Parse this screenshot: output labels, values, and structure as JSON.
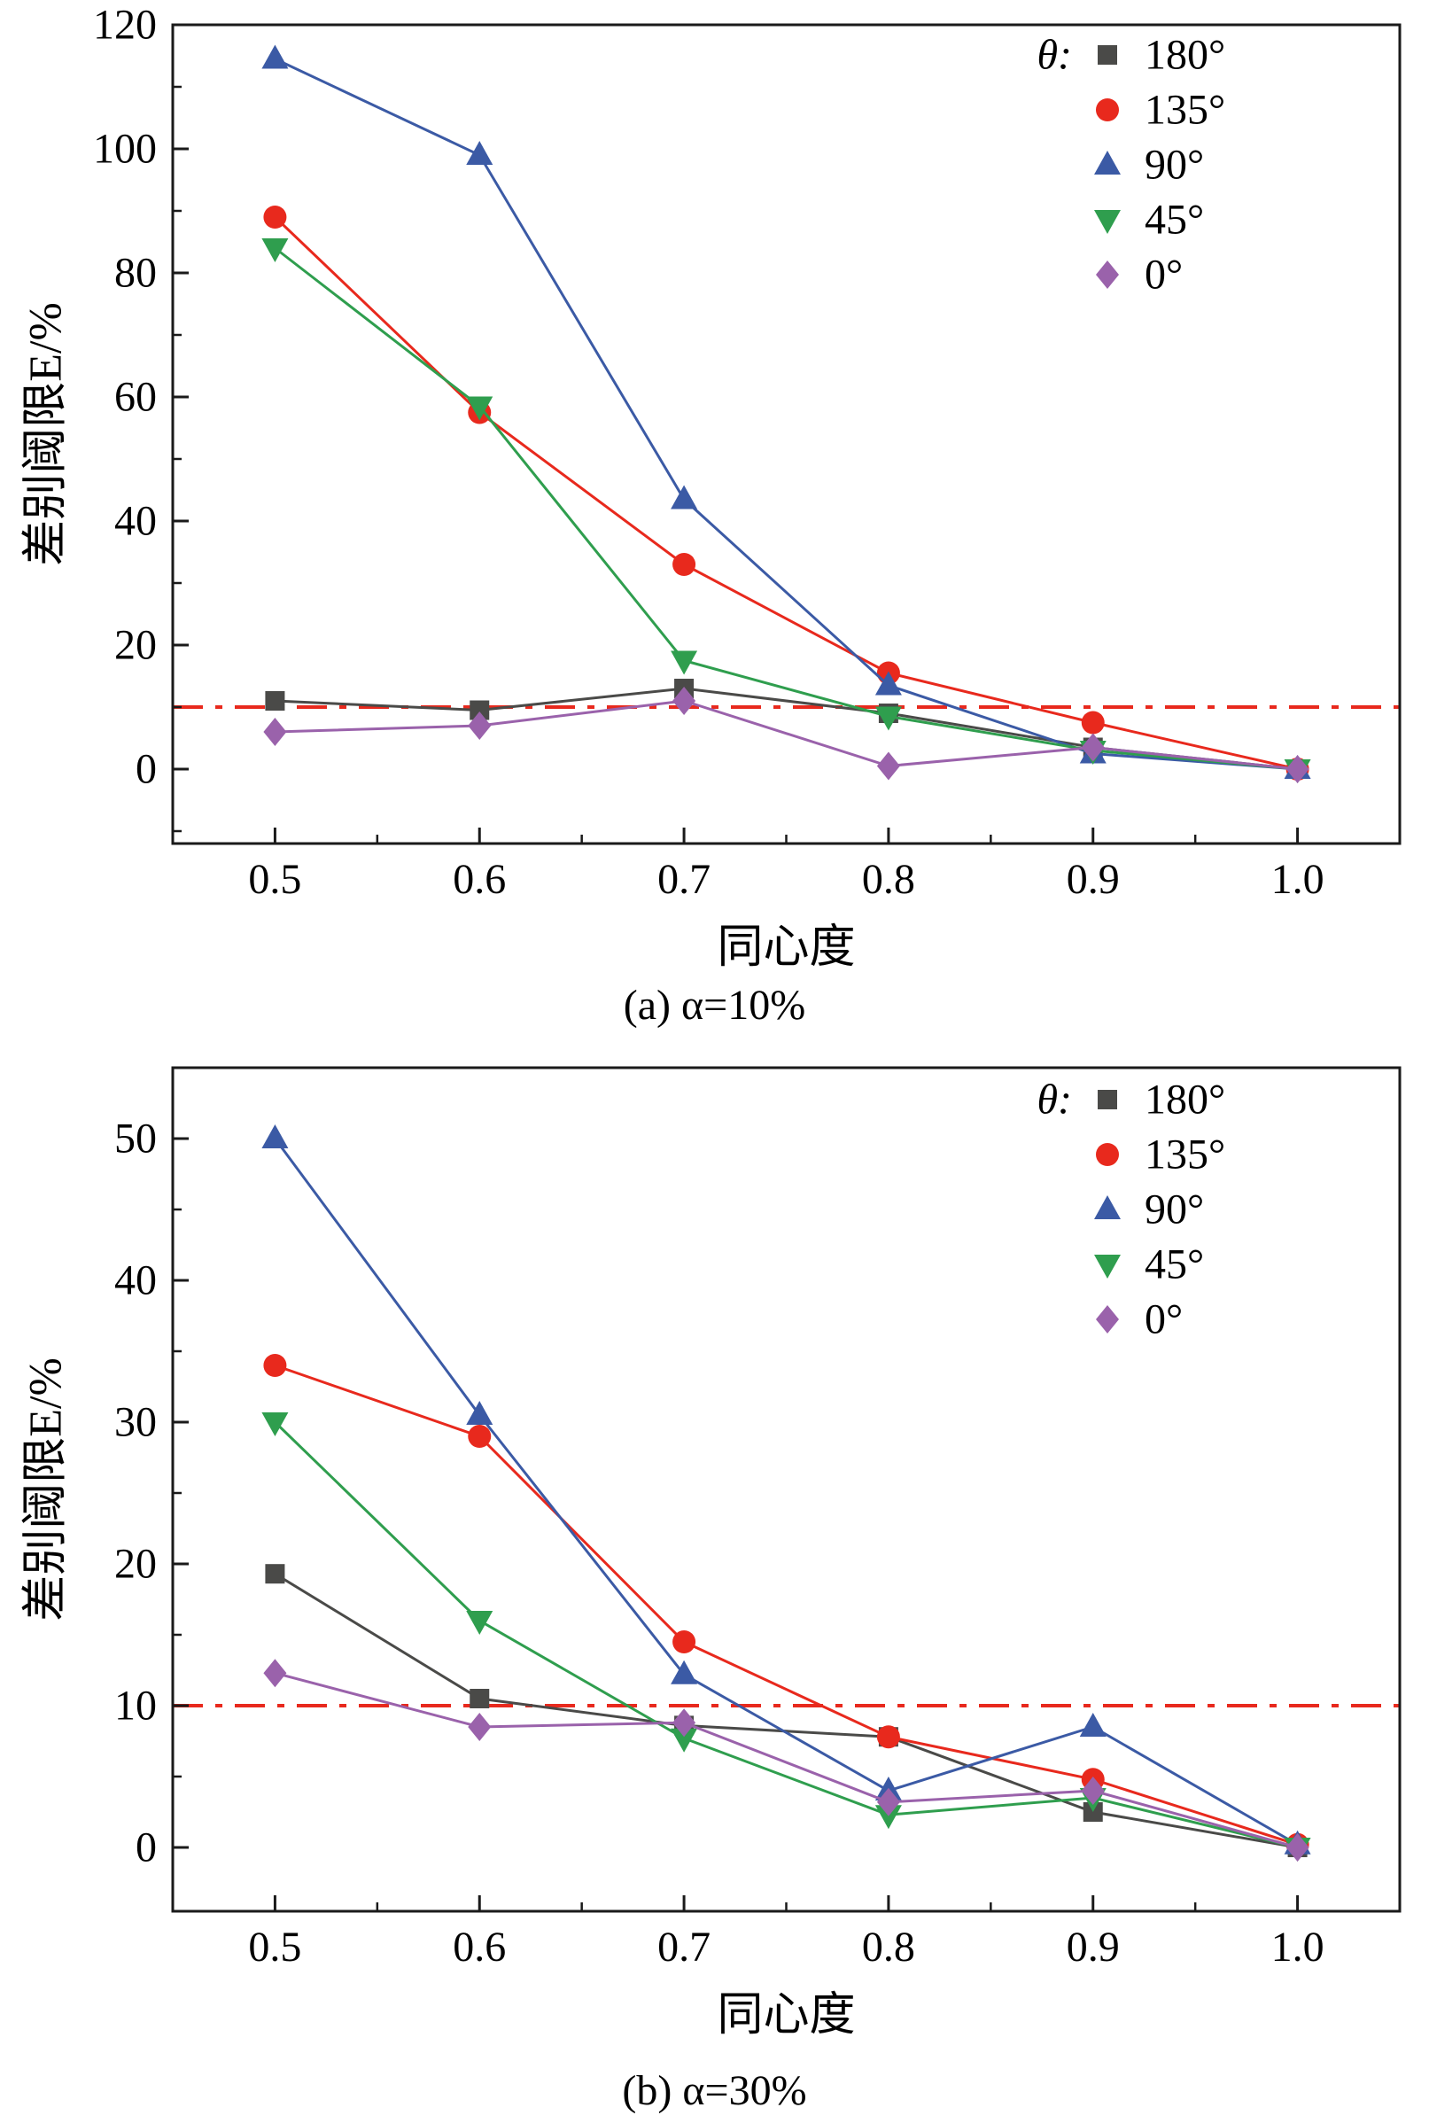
{
  "colors": {
    "axis": "#1a1a1a",
    "background": "#ffffff",
    "reference": "#e8291d"
  },
  "chart_data": [
    {
      "type": "line",
      "caption": "(a) α=10%",
      "xlabel": "同心度",
      "ylabel": "差别阈限E/%",
      "legend_title": "θ:",
      "legend_position": "top-right",
      "x": [
        0.5,
        0.6,
        0.7,
        0.8,
        0.9,
        1.0
      ],
      "xlim": [
        0.45,
        1.05
      ],
      "ylim": [
        -12,
        120
      ],
      "xticks": [
        "0.5",
        "0.6",
        "0.7",
        "0.8",
        "0.9",
        "1.0"
      ],
      "yticks": [
        "0",
        "20",
        "40",
        "60",
        "80",
        "100",
        "120"
      ],
      "x_minor_step": 0.05,
      "y_minor_step": 10,
      "reference_line_y": 10,
      "grid": false,
      "series": [
        {
          "name": "180°",
          "marker": "square",
          "color": "#4a4a48",
          "values": [
            11,
            9.5,
            13,
            9,
            3.5,
            0
          ]
        },
        {
          "name": "135°",
          "marker": "circle",
          "color": "#e8291d",
          "values": [
            89,
            57.5,
            33,
            15.5,
            7.5,
            0
          ]
        },
        {
          "name": "90°",
          "marker": "triangle-up",
          "color": "#3b5aa5",
          "values": [
            114.5,
            99,
            43.5,
            13.5,
            2.5,
            0
          ]
        },
        {
          "name": "45°",
          "marker": "triangle-down",
          "color": "#2f9e4e",
          "values": [
            84,
            58.5,
            17.5,
            8.5,
            3,
            0
          ]
        },
        {
          "name": "0°",
          "marker": "diamond",
          "color": "#9a62ab",
          "values": [
            6,
            7,
            11,
            0.5,
            3.5,
            0
          ]
        }
      ]
    },
    {
      "type": "line",
      "caption": "(b) α=30%",
      "xlabel": "同心度",
      "ylabel": "差别阈限E/%",
      "legend_title": "θ:",
      "legend_position": "top-right",
      "x": [
        0.5,
        0.6,
        0.7,
        0.8,
        0.9,
        1.0
      ],
      "xlim": [
        0.45,
        1.05
      ],
      "ylim": [
        -4.5,
        55
      ],
      "xticks": [
        "0.5",
        "0.6",
        "0.7",
        "0.8",
        "0.9",
        "1.0"
      ],
      "yticks": [
        "0",
        "10",
        "20",
        "30",
        "40",
        "50"
      ],
      "x_minor_step": 0.05,
      "y_minor_step": 5,
      "reference_line_y": 10,
      "grid": false,
      "series": [
        {
          "name": "180°",
          "marker": "square",
          "color": "#4a4a48",
          "values": [
            19.3,
            10.5,
            8.6,
            7.8,
            2.5,
            0
          ]
        },
        {
          "name": "135°",
          "marker": "circle",
          "color": "#e8291d",
          "values": [
            34,
            29,
            14.5,
            7.8,
            4.8,
            0.2
          ]
        },
        {
          "name": "90°",
          "marker": "triangle-up",
          "color": "#3b5aa5",
          "values": [
            50,
            30.5,
            12.2,
            4,
            8.5,
            0.2
          ]
        },
        {
          "name": "45°",
          "marker": "triangle-down",
          "color": "#2f9e4e",
          "values": [
            30,
            16,
            7.7,
            2.3,
            3.5,
            0
          ]
        },
        {
          "name": "0°",
          "marker": "diamond",
          "color": "#9a62ab",
          "values": [
            12.3,
            8.5,
            8.8,
            3.2,
            4,
            0
          ]
        }
      ]
    }
  ]
}
